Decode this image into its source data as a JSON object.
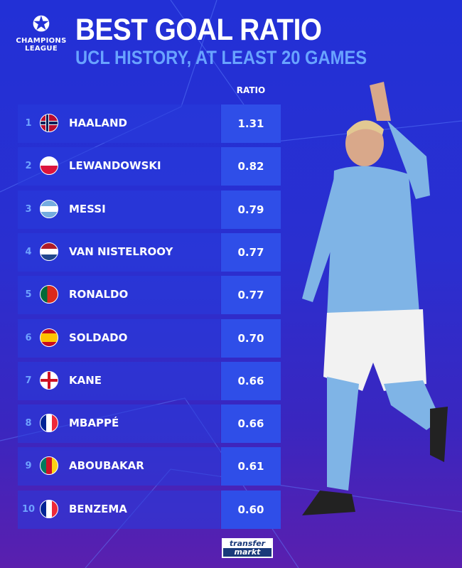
{
  "header": {
    "logo_text": [
      "CHAMPIONS",
      "LEAGUE"
    ],
    "title": "BEST GOAL RATIO",
    "subtitle": "UCL HISTORY, AT LEAST 20 GAMES"
  },
  "footer": {
    "brand_top": "transfer",
    "brand_bottom": "markt"
  },
  "colors": {
    "value_box": "#2f4ee8",
    "rank": "#6ea2ff",
    "subtitle": "#69a3ff"
  },
  "chart_data": {
    "type": "table",
    "title": "BEST GOAL RATIO",
    "subtitle": "UCL HISTORY, AT LEAST 20 GAMES",
    "column_header": "RATIO",
    "rows": [
      {
        "rank": "1",
        "name": "HAALAND",
        "flag": "norway",
        "ratio": "1.31"
      },
      {
        "rank": "2",
        "name": "LEWANDOWSKI",
        "flag": "poland",
        "ratio": "0.82"
      },
      {
        "rank": "3",
        "name": "MESSI",
        "flag": "argentina",
        "ratio": "0.79"
      },
      {
        "rank": "4",
        "name": "VAN NISTELROOY",
        "flag": "netherlands",
        "ratio": "0.77"
      },
      {
        "rank": "5",
        "name": "RONALDO",
        "flag": "portugal",
        "ratio": "0.77"
      },
      {
        "rank": "6",
        "name": "SOLDADO",
        "flag": "spain",
        "ratio": "0.70"
      },
      {
        "rank": "7",
        "name": "KANE",
        "flag": "england",
        "ratio": "0.66"
      },
      {
        "rank": "8",
        "name": "MBAPPÉ",
        "flag": "france",
        "ratio": "0.66"
      },
      {
        "rank": "9",
        "name": "ABOUBAKAR",
        "flag": "cameroon",
        "ratio": "0.61"
      },
      {
        "rank": "10",
        "name": "BENZEMA",
        "flag": "france",
        "ratio": "0.60"
      }
    ]
  }
}
